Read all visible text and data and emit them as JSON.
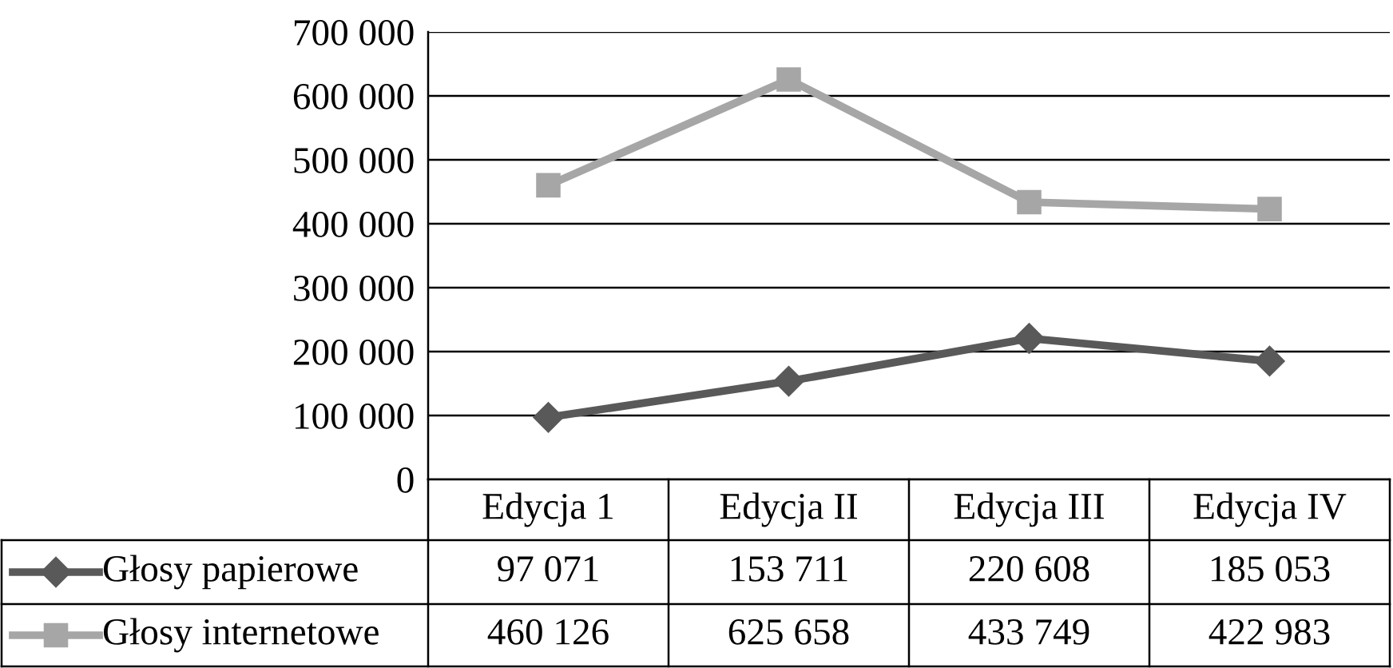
{
  "chart_data": {
    "type": "line",
    "categories": [
      "Edycja 1",
      "Edycja II",
      "Edycja III",
      "Edycja IV"
    ],
    "series": [
      {
        "name": "Głosy papierowe",
        "color": "#595959",
        "marker": "diamond",
        "values": [
          97071,
          153711,
          220608,
          185053
        ],
        "value_labels": [
          "97 071",
          "153 711",
          "220 608",
          "185 053"
        ]
      },
      {
        "name": "Głosy internetowe",
        "color": "#a6a6a6",
        "marker": "square",
        "values": [
          460126,
          625658,
          433749,
          422983
        ],
        "value_labels": [
          "460 126",
          "625 658",
          "433 749",
          "422 983"
        ]
      }
    ],
    "ylim": [
      0,
      700000
    ],
    "yticks": [
      0,
      {
        "value": 100000,
        "label": "100 000"
      },
      {
        "value": 200000,
        "label": "200 000"
      },
      {
        "value": 300000,
        "label": "300 000"
      },
      {
        "value": 400000,
        "label": "400 000"
      },
      {
        "value": 500000,
        "label": "500 000"
      },
      {
        "value": 600000,
        "label": "600 000"
      },
      {
        "value": 700000,
        "label": "700 000"
      }
    ],
    "grid": "y",
    "legend": "bottom",
    "line_style": "solid"
  }
}
